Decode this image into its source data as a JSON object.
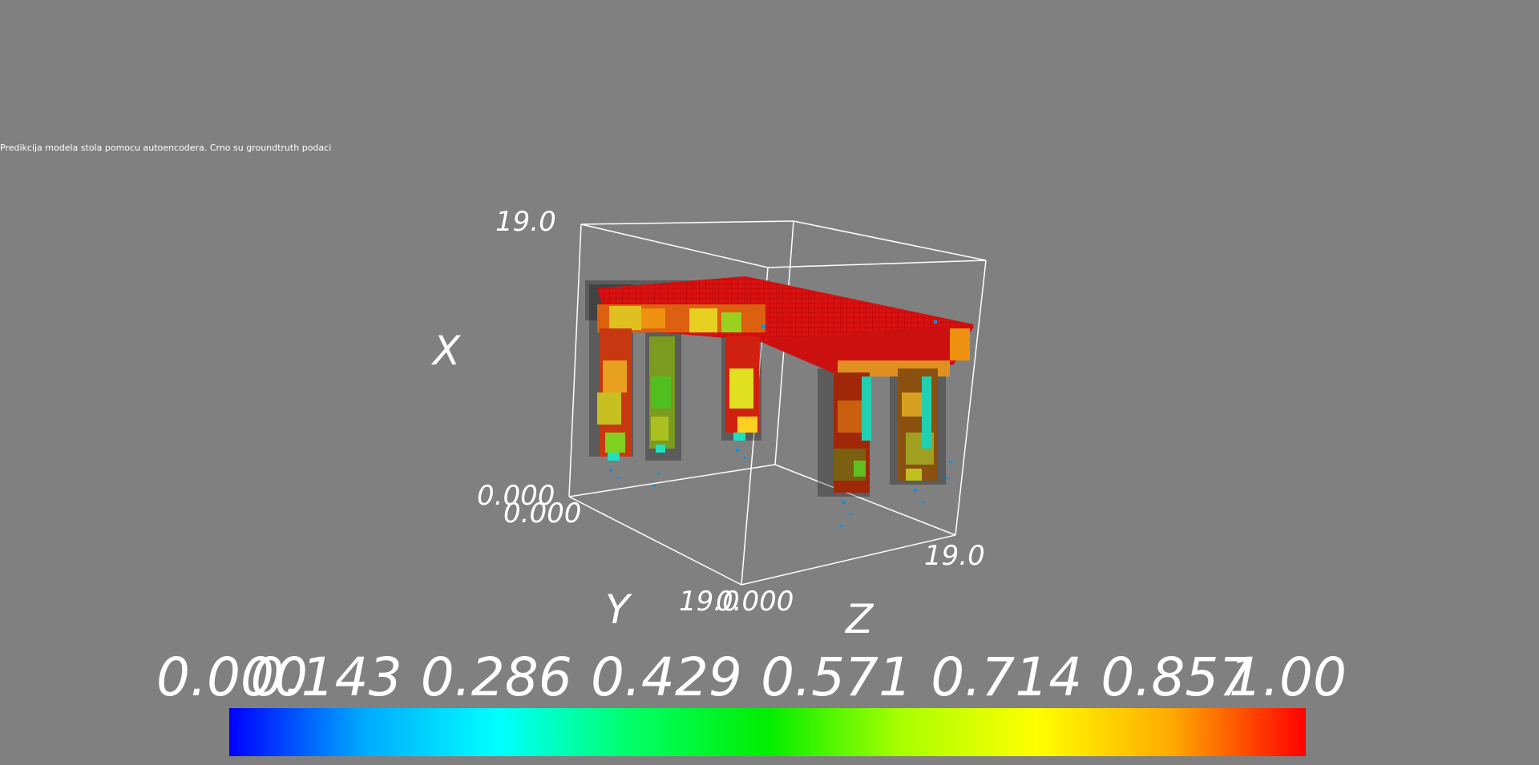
{
  "caption": "Predikcija modela stola pomocu autoencodera. Crno su groundtruth podaci",
  "axes": {
    "x_title": "X",
    "y_title": "Y",
    "z_title": "Z",
    "x_max_label": "19.0",
    "x_min_label": "0.000",
    "y_min_label": "0.000",
    "y_max_label": "19.0",
    "z_min_label": "0.000",
    "z_max_label": "19.0"
  },
  "colorbar": {
    "labels": [
      "0.000",
      "0.143",
      "0.286",
      "0.429",
      "0.571",
      "0.714",
      "0.857",
      "1.00"
    ],
    "stops": [
      "#0000ff",
      "#00aaff",
      "#00ffff",
      "#00ff66",
      "#00ee00",
      "#aaff00",
      "#ffff00",
      "#ffaa00",
      "#ff0000"
    ]
  },
  "colors": {
    "background": "#808080",
    "table": "#e01010",
    "groundtruth": "#000000"
  }
}
